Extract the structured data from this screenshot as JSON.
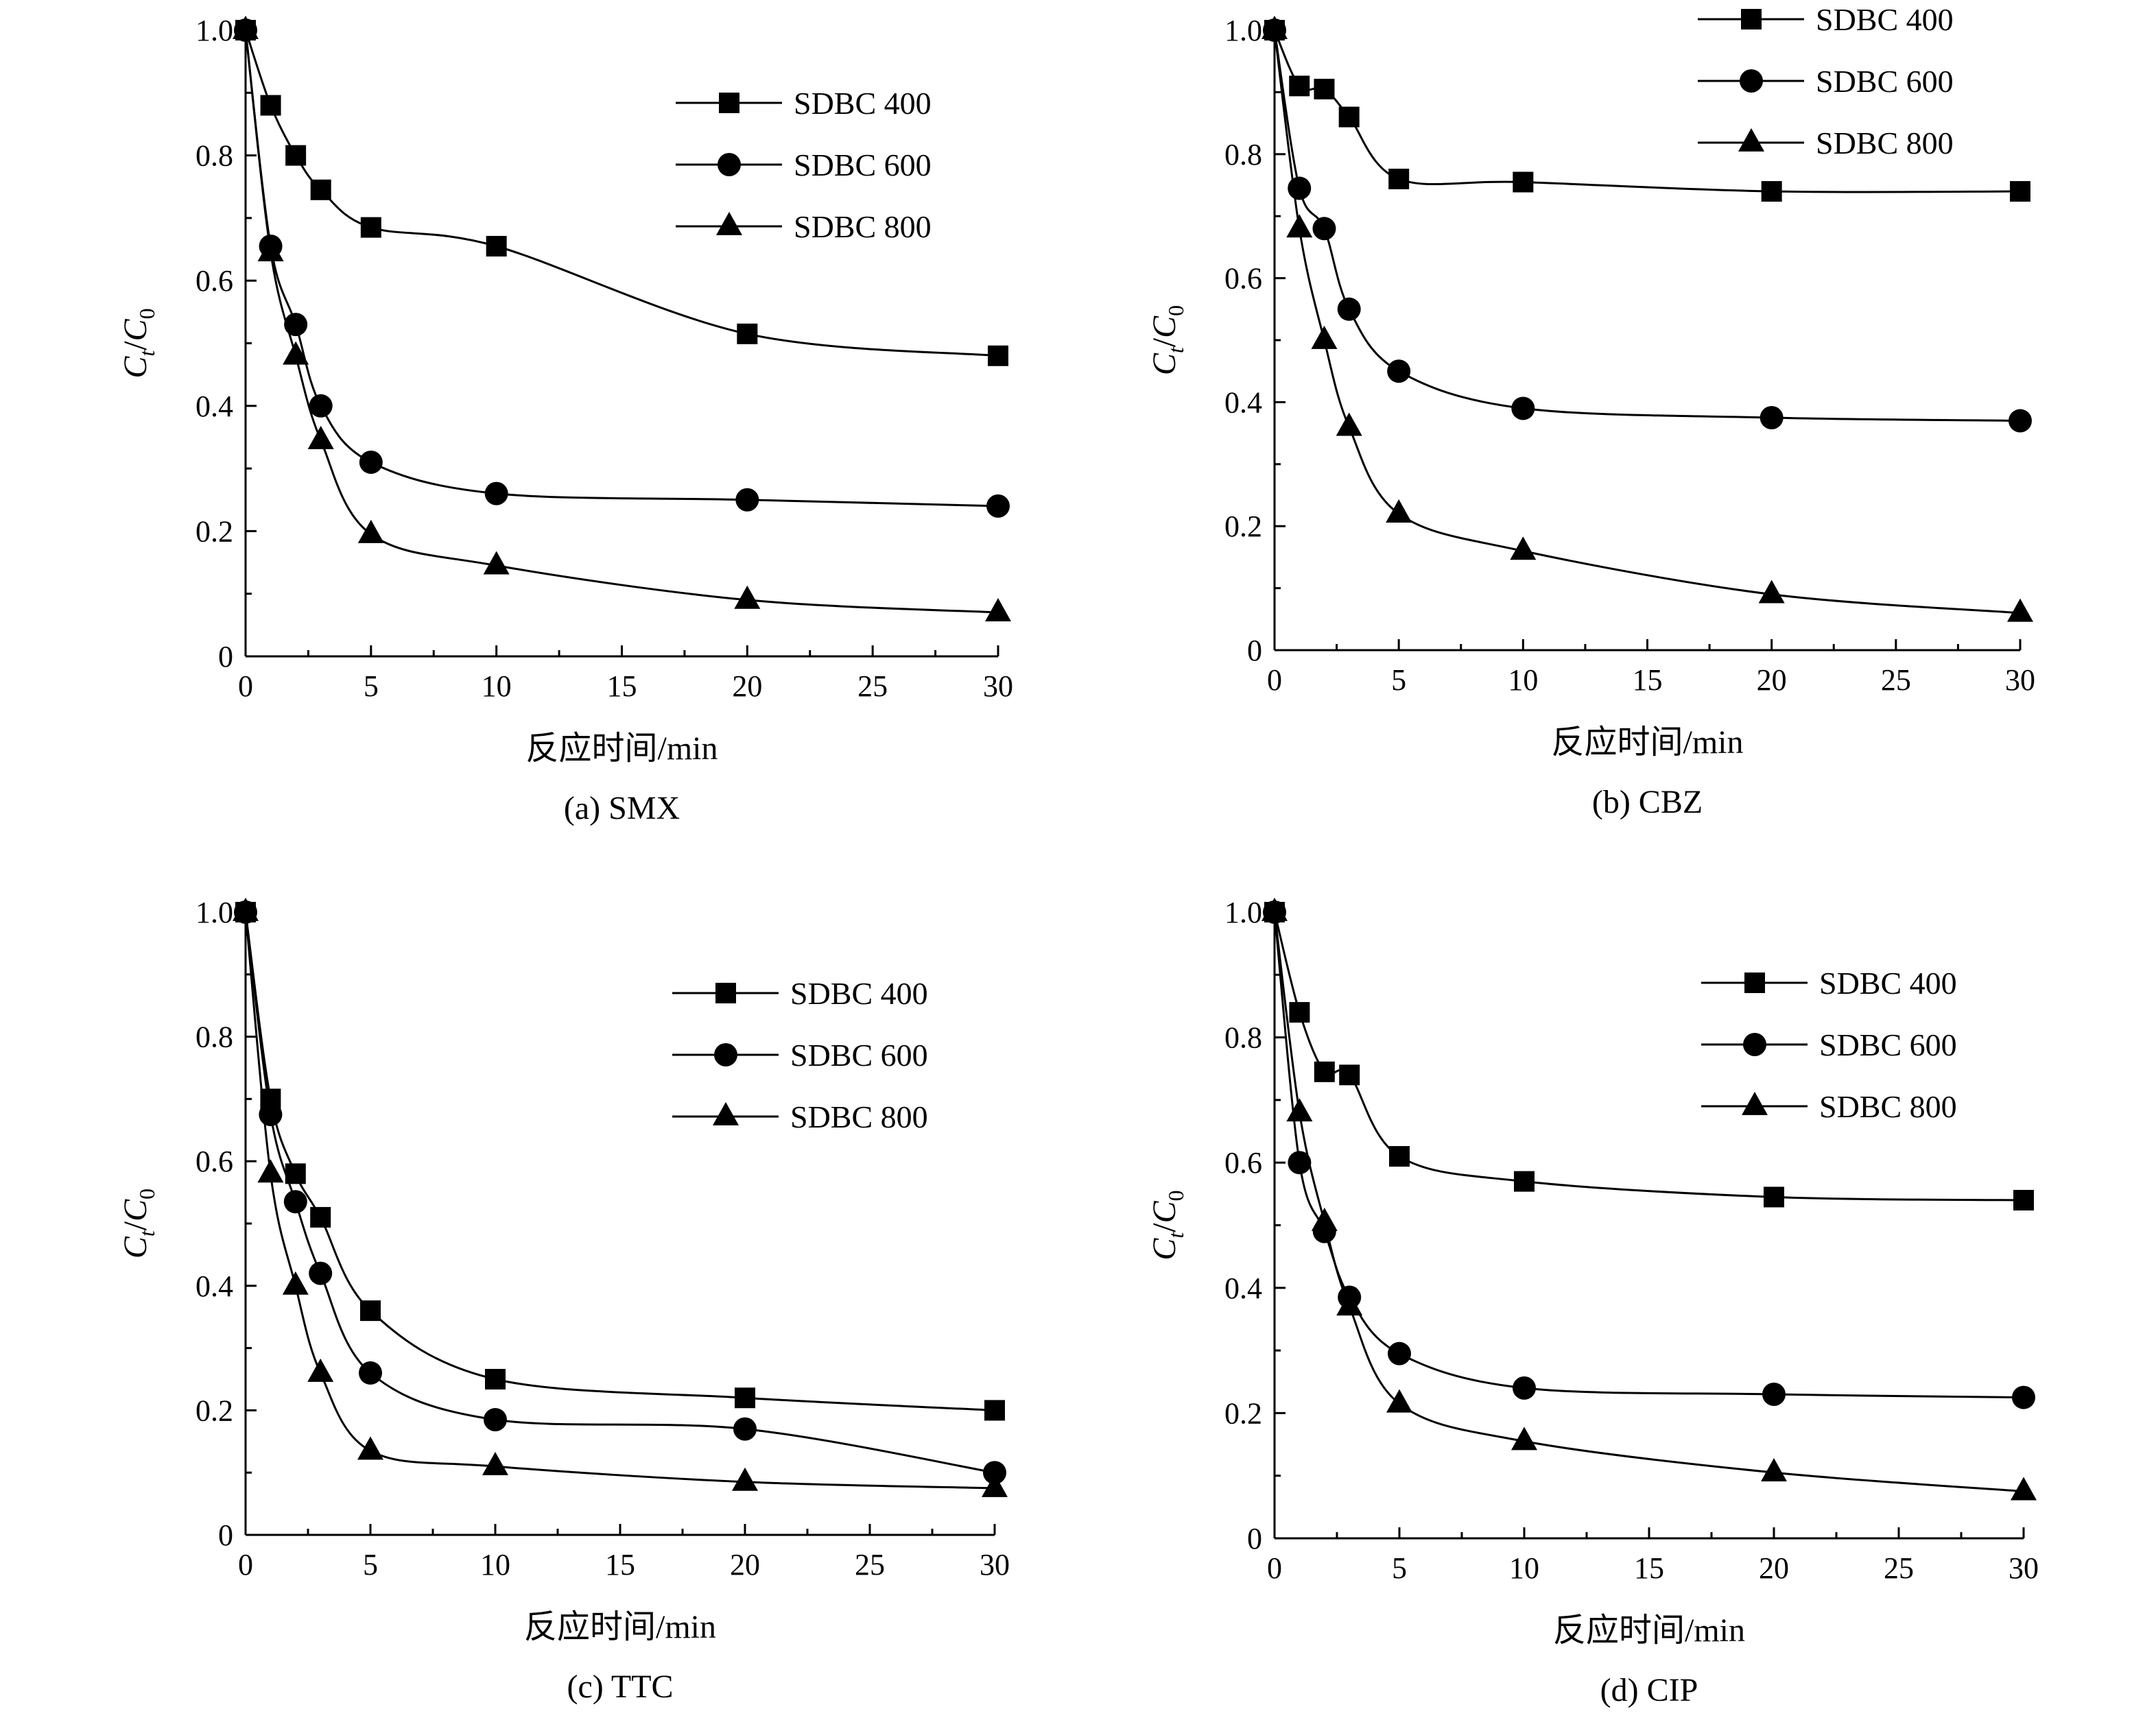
{
  "chart_data": [
    {
      "type": "scatter",
      "caption": "(a) SMX",
      "xlabel": "反应时间/min",
      "ylabel": {
        "main1": "C",
        "sub1": "t",
        "slash": "/",
        "main2": "C",
        "sub2": "0"
      },
      "xlim": [
        0,
        30
      ],
      "ylim": [
        0,
        1.0
      ],
      "xticks": [
        0,
        5,
        10,
        15,
        20,
        25,
        30
      ],
      "yticks": [
        0,
        0.2,
        0.4,
        0.6,
        0.8,
        1.0
      ],
      "ytick_labels": [
        "0",
        "0.2",
        "0.4",
        "0.6",
        "0.8",
        "1.0"
      ],
      "legend_position": "top-right",
      "x": [
        0,
        1,
        2,
        3,
        5,
        10,
        20,
        30
      ],
      "series": [
        {
          "name": "SDBC 400",
          "marker": "square",
          "values": [
            1.0,
            0.88,
            0.8,
            0.745,
            0.685,
            0.655,
            0.515,
            0.48
          ]
        },
        {
          "name": "SDBC 600",
          "marker": "circle",
          "values": [
            1.0,
            0.655,
            0.53,
            0.4,
            0.31,
            0.26,
            0.25,
            0.24
          ]
        },
        {
          "name": "SDBC 800",
          "marker": "triangle",
          "values": [
            1.0,
            0.645,
            0.48,
            0.345,
            0.195,
            0.145,
            0.09,
            0.07
          ]
        }
      ]
    },
    {
      "type": "scatter",
      "caption": "(b) CBZ",
      "xlabel": "反应时间/min",
      "ylabel": {
        "main1": "C",
        "sub1": "t",
        "slash": "/",
        "main2": "C",
        "sub2": "0"
      },
      "xlim": [
        0,
        30
      ],
      "ylim": [
        0,
        1.0
      ],
      "xticks": [
        0,
        5,
        10,
        15,
        20,
        25,
        30
      ],
      "yticks": [
        0,
        0.2,
        0.4,
        0.6,
        0.8,
        1.0
      ],
      "ytick_labels": [
        "0",
        "0.2",
        "0.4",
        "0.6",
        "0.8",
        "1.0"
      ],
      "legend_position": "top-right",
      "x": [
        0,
        1,
        2,
        3,
        5,
        10,
        20,
        30
      ],
      "series": [
        {
          "name": "SDBC 400",
          "marker": "square",
          "values": [
            1.0,
            0.91,
            0.905,
            0.86,
            0.76,
            0.755,
            0.74,
            0.74
          ]
        },
        {
          "name": "SDBC 600",
          "marker": "circle",
          "values": [
            1.0,
            0.745,
            0.68,
            0.55,
            0.45,
            0.39,
            0.375,
            0.37
          ]
        },
        {
          "name": "SDBC 800",
          "marker": "triangle",
          "values": [
            1.0,
            0.68,
            0.5,
            0.36,
            0.22,
            0.16,
            0.09,
            0.06
          ]
        }
      ]
    },
    {
      "type": "scatter",
      "caption": "(c) TTC",
      "xlabel": "反应时间/min",
      "ylabel": {
        "main1": "C",
        "sub1": "t",
        "slash": "/",
        "main2": "C",
        "sub2": "0"
      },
      "xlim": [
        0,
        30
      ],
      "ylim": [
        0,
        1.0
      ],
      "xticks": [
        0,
        5,
        10,
        15,
        20,
        25,
        30
      ],
      "yticks": [
        0,
        0.2,
        0.4,
        0.6,
        0.8,
        1.0
      ],
      "ytick_labels": [
        "0",
        "0.2",
        "0.4",
        "0.6",
        "0.8",
        "1.0"
      ],
      "legend_position": "top-right",
      "x": [
        0,
        1,
        2,
        3,
        5,
        10,
        20,
        30
      ],
      "series": [
        {
          "name": "SDBC 400",
          "marker": "square",
          "values": [
            1.0,
            0.7,
            0.58,
            0.51,
            0.36,
            0.25,
            0.22,
            0.2
          ]
        },
        {
          "name": "SDBC 600",
          "marker": "circle",
          "values": [
            1.0,
            0.675,
            0.535,
            0.42,
            0.26,
            0.185,
            0.17,
            0.1
          ]
        },
        {
          "name": "SDBC 800",
          "marker": "triangle",
          "values": [
            1.0,
            0.58,
            0.4,
            0.26,
            0.135,
            0.11,
            0.085,
            0.075
          ]
        }
      ]
    },
    {
      "type": "scatter",
      "caption": "(d) CIP",
      "xlabel": "反应时间/min",
      "ylabel": {
        "main1": "C",
        "sub1": "t",
        "slash": "/",
        "main2": "C",
        "sub2": "0"
      },
      "xlim": [
        0,
        30
      ],
      "ylim": [
        0,
        1.0
      ],
      "xticks": [
        0,
        5,
        10,
        15,
        20,
        25,
        30
      ],
      "yticks": [
        0,
        0.2,
        0.4,
        0.6,
        0.8,
        1.0
      ],
      "ytick_labels": [
        "0",
        "0.2",
        "0.4",
        "0.6",
        "0.8",
        "1.0"
      ],
      "legend_position": "top-right",
      "x": [
        0,
        1,
        2,
        3,
        5,
        10,
        20,
        30
      ],
      "series": [
        {
          "name": "SDBC 400",
          "marker": "square",
          "values": [
            1.0,
            0.84,
            0.745,
            0.74,
            0.61,
            0.57,
            0.545,
            0.54
          ]
        },
        {
          "name": "SDBC 600",
          "marker": "circle",
          "values": [
            1.0,
            0.6,
            0.49,
            0.385,
            0.295,
            0.24,
            0.23,
            0.225
          ]
        },
        {
          "name": "SDBC 800",
          "marker": "triangle",
          "values": [
            1.0,
            0.68,
            0.505,
            0.37,
            0.215,
            0.155,
            0.105,
            0.075
          ]
        }
      ]
    }
  ]
}
